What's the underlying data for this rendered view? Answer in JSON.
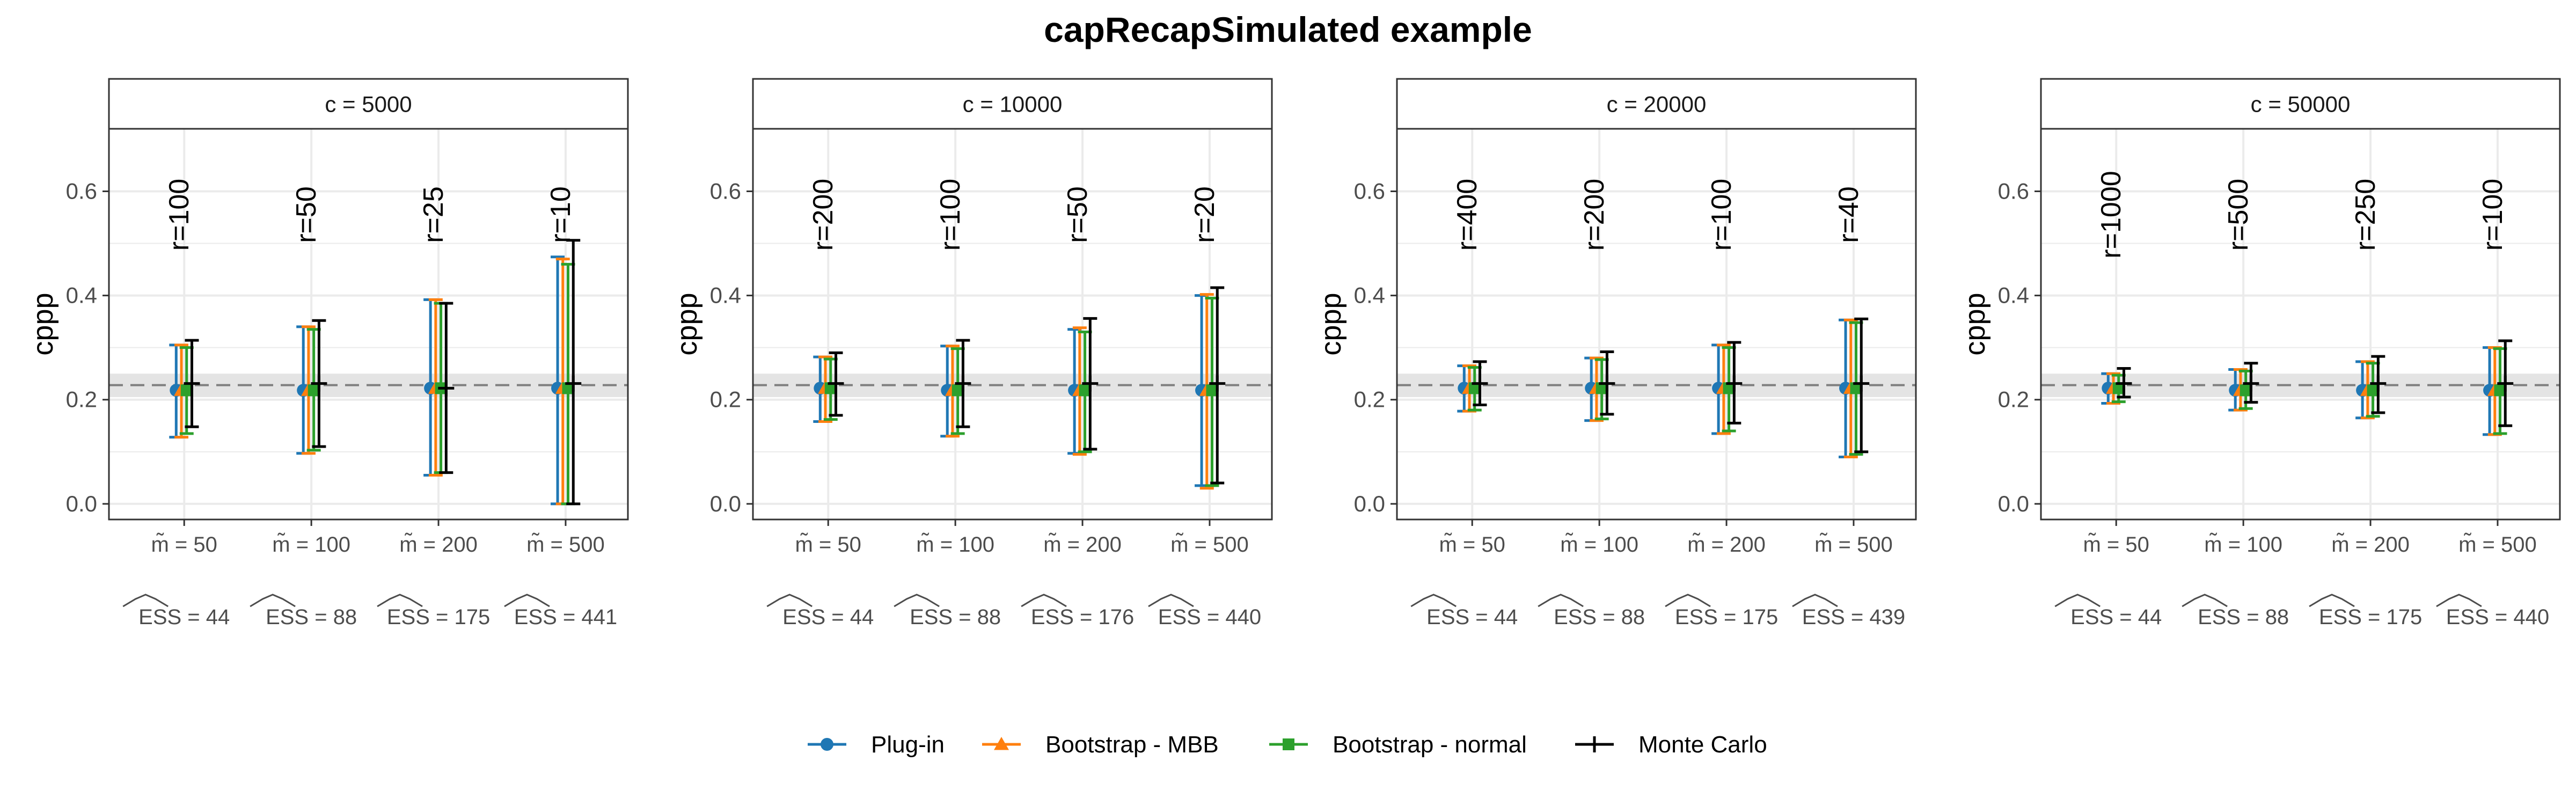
{
  "title": "capRecapSimulated example",
  "colors": {
    "plugin": "#1f77b4",
    "mbb": "#ff7f0e",
    "normal": "#2ca02c",
    "mc": "#000000",
    "strip_bg": "#ffffff",
    "band": "#d9d9d9",
    "grid": "#ebebeb",
    "ref_line": "#7f7f7f"
  },
  "legend": {
    "position": "bottom",
    "items": [
      {
        "key": "plugin",
        "label": "Plug-in",
        "shape": "circle"
      },
      {
        "key": "mbb",
        "label": "Bootstrap - MBB",
        "shape": "triangle"
      },
      {
        "key": "normal",
        "label": "Bootstrap - normal",
        "shape": "square"
      },
      {
        "key": "mc",
        "label": "Monte Carlo",
        "shape": "plus"
      }
    ]
  },
  "chart_data": {
    "type": "errorbar",
    "ylabel": "cppp",
    "ylim": [
      -0.03,
      0.72
    ],
    "yticks": [
      0.0,
      0.2,
      0.4,
      0.6
    ],
    "ytick_labels": [
      "0.0",
      "0.2",
      "0.4",
      "0.6"
    ],
    "reference": {
      "value": 0.228,
      "band": [
        0.205,
        0.25
      ]
    },
    "panels": [
      {
        "strip": "c = 5000",
        "groups": [
          {
            "m": "m̃ = 50",
            "ess": "ESS = 44",
            "r": "r=100",
            "plugin": {
              "est": 0.218,
              "lo": 0.128,
              "hi": 0.305
            },
            "mbb": {
              "est": 0.218,
              "lo": 0.128,
              "hi": 0.305
            },
            "normal": {
              "est": 0.218,
              "lo": 0.135,
              "hi": 0.3
            },
            "mc": {
              "est": 0.231,
              "lo": 0.148,
              "hi": 0.314
            }
          },
          {
            "m": "m̃ = 100",
            "ess": "ESS = 88",
            "r": "r=50",
            "plugin": {
              "est": 0.218,
              "lo": 0.097,
              "hi": 0.34
            },
            "mbb": {
              "est": 0.218,
              "lo": 0.097,
              "hi": 0.34
            },
            "normal": {
              "est": 0.218,
              "lo": 0.103,
              "hi": 0.335
            },
            "mc": {
              "est": 0.231,
              "lo": 0.11,
              "hi": 0.352
            }
          },
          {
            "m": "m̃ = 200",
            "ess": "ESS = 175",
            "r": "r=25",
            "plugin": {
              "est": 0.222,
              "lo": 0.055,
              "hi": 0.392
            },
            "mbb": {
              "est": 0.222,
              "lo": 0.055,
              "hi": 0.392
            },
            "normal": {
              "est": 0.222,
              "lo": 0.06,
              "hi": 0.385
            },
            "mc": {
              "est": 0.222,
              "lo": 0.06,
              "hi": 0.385
            }
          },
          {
            "m": "m̃ = 500",
            "ess": "ESS = 441",
            "r": "r=10",
            "plugin": {
              "est": 0.222,
              "lo": 0.0,
              "hi": 0.474
            },
            "mbb": {
              "est": 0.222,
              "lo": 0.0,
              "hi": 0.47
            },
            "normal": {
              "est": 0.222,
              "lo": 0.0,
              "hi": 0.46
            },
            "mc": {
              "est": 0.231,
              "lo": 0.0,
              "hi": 0.506
            }
          }
        ]
      },
      {
        "strip": "c = 10000",
        "groups": [
          {
            "m": "m̃ = 50",
            "ess": "ESS = 44",
            "r": "r=200",
            "plugin": {
              "est": 0.222,
              "lo": 0.158,
              "hi": 0.282
            },
            "mbb": {
              "est": 0.222,
              "lo": 0.158,
              "hi": 0.282
            },
            "normal": {
              "est": 0.222,
              "lo": 0.162,
              "hi": 0.278
            },
            "mc": {
              "est": 0.231,
              "lo": 0.17,
              "hi": 0.29
            }
          },
          {
            "m": "m̃ = 100",
            "ess": "ESS = 88",
            "r": "r=100",
            "plugin": {
              "est": 0.218,
              "lo": 0.13,
              "hi": 0.303
            },
            "mbb": {
              "est": 0.218,
              "lo": 0.13,
              "hi": 0.303
            },
            "normal": {
              "est": 0.218,
              "lo": 0.135,
              "hi": 0.298
            },
            "mc": {
              "est": 0.231,
              "lo": 0.148,
              "hi": 0.314
            }
          },
          {
            "m": "m̃ = 200",
            "ess": "ESS = 176",
            "r": "r=50",
            "plugin": {
              "est": 0.218,
              "lo": 0.097,
              "hi": 0.335
            },
            "mbb": {
              "est": 0.218,
              "lo": 0.095,
              "hi": 0.338
            },
            "normal": {
              "est": 0.218,
              "lo": 0.1,
              "hi": 0.33
            },
            "mc": {
              "est": 0.231,
              "lo": 0.105,
              "hi": 0.356
            }
          },
          {
            "m": "m̃ = 500",
            "ess": "ESS = 440",
            "r": "r=20",
            "plugin": {
              "est": 0.218,
              "lo": 0.035,
              "hi": 0.4
            },
            "mbb": {
              "est": 0.218,
              "lo": 0.03,
              "hi": 0.402
            },
            "normal": {
              "est": 0.218,
              "lo": 0.035,
              "hi": 0.395
            },
            "mc": {
              "est": 0.231,
              "lo": 0.04,
              "hi": 0.415
            }
          }
        ]
      },
      {
        "strip": "c = 20000",
        "groups": [
          {
            "m": "m̃ = 50",
            "ess": "ESS = 44",
            "r": "r=400",
            "plugin": {
              "est": 0.222,
              "lo": 0.178,
              "hi": 0.265
            },
            "mbb": {
              "est": 0.222,
              "lo": 0.178,
              "hi": 0.265
            },
            "normal": {
              "est": 0.222,
              "lo": 0.18,
              "hi": 0.262
            },
            "mc": {
              "est": 0.231,
              "lo": 0.19,
              "hi": 0.273
            }
          },
          {
            "m": "m̃ = 100",
            "ess": "ESS = 88",
            "r": "r=200",
            "plugin": {
              "est": 0.222,
              "lo": 0.16,
              "hi": 0.28
            },
            "mbb": {
              "est": 0.222,
              "lo": 0.16,
              "hi": 0.28
            },
            "normal": {
              "est": 0.222,
              "lo": 0.163,
              "hi": 0.277
            },
            "mc": {
              "est": 0.231,
              "lo": 0.172,
              "hi": 0.292
            }
          },
          {
            "m": "m̃ = 200",
            "ess": "ESS = 175",
            "r": "r=100",
            "plugin": {
              "est": 0.222,
              "lo": 0.135,
              "hi": 0.305
            },
            "mbb": {
              "est": 0.222,
              "lo": 0.135,
              "hi": 0.305
            },
            "normal": {
              "est": 0.222,
              "lo": 0.14,
              "hi": 0.3
            },
            "mc": {
              "est": 0.231,
              "lo": 0.155,
              "hi": 0.31
            }
          },
          {
            "m": "m̃ = 500",
            "ess": "ESS = 439",
            "r": "r=40",
            "plugin": {
              "est": 0.222,
              "lo": 0.09,
              "hi": 0.353
            },
            "mbb": {
              "est": 0.222,
              "lo": 0.09,
              "hi": 0.353
            },
            "normal": {
              "est": 0.222,
              "lo": 0.095,
              "hi": 0.348
            },
            "mc": {
              "est": 0.231,
              "lo": 0.1,
              "hi": 0.355
            }
          }
        ]
      },
      {
        "strip": "c = 50000",
        "groups": [
          {
            "m": "m̃ = 50",
            "ess": "ESS = 44",
            "r": "r=1000",
            "plugin": {
              "est": 0.222,
              "lo": 0.193,
              "hi": 0.25
            },
            "mbb": {
              "est": 0.222,
              "lo": 0.193,
              "hi": 0.25
            },
            "normal": {
              "est": 0.222,
              "lo": 0.196,
              "hi": 0.247
            },
            "mc": {
              "est": 0.231,
              "lo": 0.205,
              "hi": 0.26
            }
          },
          {
            "m": "m̃ = 100",
            "ess": "ESS = 88",
            "r": "r=500",
            "plugin": {
              "est": 0.218,
              "lo": 0.18,
              "hi": 0.258
            },
            "mbb": {
              "est": 0.218,
              "lo": 0.18,
              "hi": 0.258
            },
            "normal": {
              "est": 0.218,
              "lo": 0.183,
              "hi": 0.255
            },
            "mc": {
              "est": 0.231,
              "lo": 0.195,
              "hi": 0.27
            }
          },
          {
            "m": "m̃ = 200",
            "ess": "ESS = 175",
            "r": "r=250",
            "plugin": {
              "est": 0.218,
              "lo": 0.165,
              "hi": 0.273
            },
            "mbb": {
              "est": 0.218,
              "lo": 0.165,
              "hi": 0.273
            },
            "normal": {
              "est": 0.218,
              "lo": 0.168,
              "hi": 0.27
            },
            "mc": {
              "est": 0.231,
              "lo": 0.175,
              "hi": 0.283
            }
          },
          {
            "m": "m̃ = 500",
            "ess": "ESS = 440",
            "r": "r=100",
            "plugin": {
              "est": 0.218,
              "lo": 0.133,
              "hi": 0.3
            },
            "mbb": {
              "est": 0.218,
              "lo": 0.133,
              "hi": 0.3
            },
            "normal": {
              "est": 0.218,
              "lo": 0.135,
              "hi": 0.298
            },
            "mc": {
              "est": 0.231,
              "lo": 0.15,
              "hi": 0.313
            }
          }
        ]
      }
    ]
  }
}
